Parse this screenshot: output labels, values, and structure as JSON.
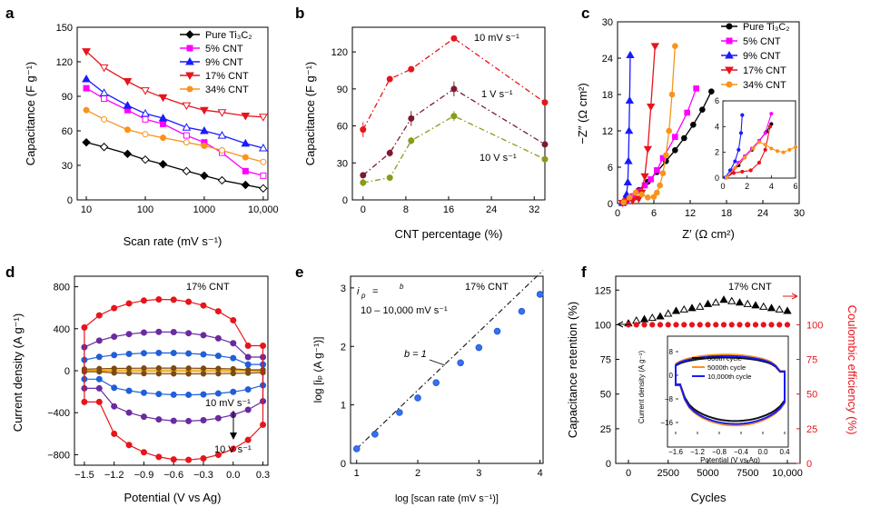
{
  "colors": {
    "pure": "#000000",
    "cnt5": "#ff00ff",
    "cnt9": "#1a1aff",
    "cnt17": "#e8141c",
    "cnt34": "#f7941d",
    "rate10mV": "#e8141c",
    "rate1V": "#7d1a2e",
    "rate10V": "#8a9a1b",
    "cv10mV": "#f0a000",
    "cv2": "#7a4a10",
    "cv3": "#1f5fd8",
    "cv4": "#6a2aa0",
    "cv10V": "#e8141c",
    "cycle500": "#111111",
    "cycle5000": "#f7941d",
    "cycle10000": "#1a1aff"
  },
  "chart_data": [
    {
      "panel": "a",
      "type": "line",
      "xlabel": "Scan rate (mV s⁻¹)",
      "ylabel": "Capacitance (F g⁻¹)",
      "xscale": "log",
      "xlim": [
        7,
        12000
      ],
      "ylim": [
        0,
        150
      ],
      "xticks": [
        10,
        100,
        1000,
        10000
      ],
      "xtick_labels": [
        "10",
        "100",
        "1000",
        "10,000"
      ],
      "yticks": [
        0,
        30,
        60,
        90,
        120,
        150
      ],
      "legend": {
        "placement": "top-right",
        "title_label": "Pure Ti₃C₂"
      },
      "x": [
        10,
        20,
        50,
        100,
        200,
        500,
        1000,
        2000,
        5000,
        10000
      ],
      "series": [
        {
          "name": "Pure Ti₃C₂",
          "color_key": "pure",
          "marker": "diamond",
          "values": [
            50,
            46,
            40,
            35,
            31,
            25,
            21,
            17,
            13,
            10
          ]
        },
        {
          "name": "5% CNT",
          "color_key": "cnt5",
          "marker": "square",
          "values": [
            97,
            88,
            78,
            70,
            66,
            56,
            50,
            41,
            25,
            21
          ]
        },
        {
          "name": "9% CNT",
          "color_key": "cnt9",
          "marker": "triangle-up",
          "values": [
            105,
            93,
            82,
            75,
            71,
            63,
            60,
            56,
            49,
            45
          ]
        },
        {
          "name": "17% CNT",
          "color_key": "cnt17",
          "marker": "triangle-down",
          "values": [
            129,
            115,
            103,
            95,
            89,
            82,
            78,
            76,
            73,
            72
          ]
        },
        {
          "name": "34% CNT",
          "color_key": "cnt34",
          "marker": "circle",
          "values": [
            78,
            70,
            61,
            57,
            54,
            50,
            47,
            43,
            37,
            33
          ]
        }
      ]
    },
    {
      "panel": "b",
      "type": "line",
      "xlabel": "CNT percentage (%)",
      "ylabel": "Capacitance (F g⁻¹)",
      "xlim": [
        -2,
        34
      ],
      "ylim": [
        0,
        140
      ],
      "xticks": [
        0,
        8,
        16,
        24,
        32
      ],
      "yticks": [
        0,
        30,
        60,
        90,
        120
      ],
      "x": [
        0,
        5,
        9,
        17,
        34
      ],
      "series": [
        {
          "name": "10 mV s⁻¹",
          "color_key": "rate10mV",
          "values": [
            57,
            98,
            106,
            131,
            79
          ],
          "err": [
            6,
            2,
            2,
            2,
            2
          ]
        },
        {
          "name": "1 V s⁻¹",
          "color_key": "rate1V",
          "values": [
            20,
            38,
            66,
            90,
            45
          ],
          "err": [
            2,
            3,
            6,
            6,
            2
          ]
        },
        {
          "name": "10 V s⁻¹",
          "color_key": "rate10V",
          "values": [
            14,
            18,
            48,
            68,
            33
          ],
          "err": [
            3,
            2,
            3,
            4,
            2
          ]
        }
      ]
    },
    {
      "panel": "c",
      "type": "scatter",
      "xlabel": "Z′ (Ω cm²)",
      "ylabel": "−Z″ (Ω cm²)",
      "xlim": [
        0,
        30
      ],
      "ylim": [
        0,
        30
      ],
      "xticks": [
        0,
        6,
        12,
        18,
        24,
        30
      ],
      "yticks": [
        0,
        6,
        12,
        18,
        24,
        30
      ],
      "legend": {
        "placement": "top-right"
      },
      "series": [
        {
          "name": "Pure Ti₃C₂",
          "color_key": "pure",
          "marker": "circle",
          "x": [
            0.8,
            1.5,
            2.5,
            3.5,
            5,
            6.5,
            8,
            9.5,
            11,
            12.5,
            14,
            15.5
          ],
          "y": [
            0.1,
            0.4,
            1.2,
            2.2,
            3.6,
            5.2,
            7,
            8.8,
            10.8,
            13,
            15.5,
            18.5
          ]
        },
        {
          "name": "5% CNT",
          "color_key": "cnt5",
          "marker": "square",
          "x": [
            0.8,
            1.5,
            2.5,
            3.5,
            4.5,
            5.5,
            6.5,
            7.5,
            9.5,
            11.5,
            13
          ],
          "y": [
            0.1,
            0.5,
            1.2,
            2,
            3,
            4,
            5.5,
            7.5,
            11,
            15,
            19
          ]
        },
        {
          "name": "9% CNT",
          "color_key": "cnt9",
          "marker": "triangle-up",
          "x": [
            0.8,
            1.2,
            1.5,
            1.7,
            1.8,
            1.9,
            2.0,
            2.1
          ],
          "y": [
            0.1,
            0.6,
            1.5,
            3.5,
            7,
            12,
            17,
            24.5
          ]
        },
        {
          "name": "17% CNT",
          "color_key": "cnt17",
          "marker": "triangle-down",
          "x": [
            0.8,
            1.5,
            2.5,
            3.5,
            4,
            4.5,
            5,
            5.5,
            6.2
          ],
          "y": [
            0.1,
            0.4,
            0.5,
            0.8,
            1.8,
            4.5,
            9,
            16,
            26
          ]
        },
        {
          "name": "34% CNT",
          "color_key": "cnt34",
          "marker": "circle",
          "x": [
            1,
            2,
            3,
            4,
            5,
            6,
            6.5,
            7,
            7.5,
            8,
            8.5,
            9,
            9.5
          ],
          "y": [
            0.2,
            1,
            1.8,
            1.5,
            1.0,
            1.1,
            1.8,
            3,
            5,
            8,
            12,
            18,
            26
          ]
        }
      ],
      "inset": {
        "xlim": [
          0,
          6
        ],
        "ylim": [
          0,
          6
        ],
        "xticks": [
          0,
          2,
          4,
          6
        ],
        "yticks": [
          0,
          2,
          4,
          6
        ],
        "series": [
          {
            "color_key": "pure",
            "x": [
              0.3,
              0.8,
              1.3,
              1.8,
              2.4,
              3,
              3.6,
              4.0
            ],
            "y": [
              0.05,
              0.5,
              1.0,
              1.6,
              2.2,
              2.9,
              3.6,
              4.2
            ]
          },
          {
            "color_key": "cnt5",
            "x": [
              0.3,
              0.8,
              1.3,
              1.8,
              2.4,
              3,
              3.5,
              4.0
            ],
            "y": [
              0.05,
              0.6,
              1.2,
              1.7,
              2.3,
              2.9,
              3.5,
              5.0
            ]
          },
          {
            "color_key": "cnt9",
            "x": [
              0.2,
              0.6,
              1.0,
              1.3,
              1.5,
              1.6
            ],
            "y": [
              0.05,
              0.6,
              1.3,
              2.2,
              3.5,
              4.9
            ]
          },
          {
            "color_key": "cnt17",
            "x": [
              0.3,
              0.9,
              1.6,
              2.3,
              3.0,
              3.5,
              3.9
            ],
            "y": [
              0.05,
              0.4,
              0.5,
              0.6,
              1.2,
              2.2,
              4.0
            ]
          },
          {
            "color_key": "cnt34",
            "x": [
              0.3,
              1,
              1.8,
              2.5,
              3,
              3.5,
              4,
              4.5,
              5,
              5.5,
              6
            ],
            "y": [
              0.05,
              0.8,
              1.6,
              2.3,
              2.8,
              2.6,
              2.3,
              2.1,
              2.0,
              2.2,
              2.4
            ]
          }
        ]
      }
    },
    {
      "panel": "d",
      "type": "line",
      "xlabel": "Potential (V vs Ag)",
      "ylabel": "Current density (A g⁻¹)",
      "xlim": [
        -1.6,
        0.35
      ],
      "ylim": [
        -900,
        900
      ],
      "xticks": [
        -1.5,
        -1.2,
        -0.9,
        -0.6,
        -0.3,
        0.0,
        0.3
      ],
      "xtick_labels": [
        "−1.5",
        "−1.2",
        "−0.9",
        "−0.6",
        "−0.3",
        "0.0",
        "0.3"
      ],
      "yticks": [
        -800,
        -400,
        0,
        400,
        800
      ],
      "ytick_labels": [
        "−800",
        "−400",
        "0",
        "400",
        "800"
      ],
      "annotations": [
        "17% CNT",
        "10 mV s⁻¹",
        "10 V s⁻¹"
      ],
      "series": [
        {
          "name": "10 mV s⁻¹",
          "color_key": "cv10mV",
          "amp_top": 8,
          "amp_bot": -8
        },
        {
          "name": "",
          "color_key": "cv2",
          "amp_top": 25,
          "amp_bot": -30
        },
        {
          "name": "",
          "color_key": "cv3",
          "amp_top": 170,
          "amp_bot": -230
        },
        {
          "name": "",
          "color_key": "cv4",
          "amp_top": 370,
          "amp_bot": -480
        },
        {
          "name": "10 V s⁻¹",
          "color_key": "cv10V",
          "amp_top": 680,
          "amp_bot": -850
        }
      ]
    },
    {
      "panel": "e",
      "type": "scatter",
      "xlabel": "log [scan rate (mV s⁻¹)]",
      "ylabel": "log [iₚ (A g⁻¹)]",
      "xlim": [
        0.9,
        4.05
      ],
      "ylim": [
        0,
        3.2
      ],
      "xticks": [
        1,
        2,
        3,
        4
      ],
      "yticks": [
        0,
        1,
        2,
        3
      ],
      "annotations": {
        "formula_left": "i",
        "formula_sub": "p",
        "formula_eq": "=",
        "formula_sup": "b",
        "range": "10 – 10,000 mV s⁻¹",
        "label": "17% CNT",
        "fit": "b = 1"
      },
      "fit_line": {
        "slope": 1,
        "intercept": -0.75
      },
      "x": [
        1,
        1.3,
        1.7,
        2,
        2.3,
        2.7,
        3,
        3.3,
        3.7,
        4
      ],
      "y": [
        0.25,
        0.5,
        0.87,
        1.12,
        1.38,
        1.72,
        1.98,
        2.26,
        2.6,
        2.89
      ]
    },
    {
      "panel": "f",
      "type": "scatter",
      "xlabel": "Cycles",
      "ylabel": "Capacitance retention (%)",
      "y2label": "Coulombic efficiency (%)",
      "xlim": [
        -800,
        10800
      ],
      "ylim": [
        0,
        135
      ],
      "xticks": [
        0,
        2500,
        5000,
        7500,
        10000
      ],
      "xtick_labels": [
        "0",
        "2500",
        "5000",
        "7500",
        "10,000"
      ],
      "yticks": [
        0,
        25,
        50,
        75,
        100,
        125
      ],
      "y2ticks": [
        0,
        25,
        50,
        75,
        100
      ],
      "annotations": [
        "17% CNT"
      ],
      "x": [
        0,
        500,
        1000,
        1500,
        2000,
        2500,
        3000,
        3500,
        4000,
        4500,
        5000,
        5500,
        6000,
        6500,
        7000,
        7500,
        8000,
        8500,
        9000,
        9500,
        10000
      ],
      "retention": [
        101,
        103,
        104,
        105,
        106,
        108,
        110,
        111,
        112,
        113,
        115,
        116,
        118,
        117,
        116,
        115,
        114,
        113,
        112,
        111,
        110
      ],
      "efficiency": [
        100,
        100,
        100,
        100,
        100,
        100,
        100,
        100,
        100,
        100,
        100,
        100,
        100,
        100,
        100,
        100,
        100,
        100,
        100,
        100,
        100
      ],
      "inset": {
        "xlabel": "Potential (V vs Ag)",
        "ylabel": "Current density (A g⁻¹)",
        "xlim": [
          -1.6,
          0.4
        ],
        "ylim": [
          -20,
          12
        ],
        "xticks": [
          -1.6,
          -1.2,
          -0.8,
          -0.4,
          0.0,
          0.4
        ],
        "xtick_labels": [
          "−1.6",
          "−1.2",
          "−0.8",
          "−0.4",
          "0.0",
          "0.4"
        ],
        "yticks": [
          -16,
          -8,
          0,
          8
        ],
        "ytick_labels": [
          "−16",
          "−8",
          "0",
          "8"
        ],
        "legend": [
          "500th cycle",
          "5000th cycle",
          "10,000th cycle"
        ],
        "series": [
          {
            "name": "500th cycle",
            "color_key": "cycle500",
            "top": 6.0,
            "bot": -15.5
          },
          {
            "name": "5000th cycle",
            "color_key": "cycle5000",
            "top": 7.0,
            "bot": -17.0
          },
          {
            "name": "10,000th cycle",
            "color_key": "cycle10000",
            "top": 6.5,
            "bot": -16.5
          }
        ]
      }
    }
  ],
  "panel_letters": [
    "a",
    "b",
    "c",
    "d",
    "e",
    "f"
  ]
}
